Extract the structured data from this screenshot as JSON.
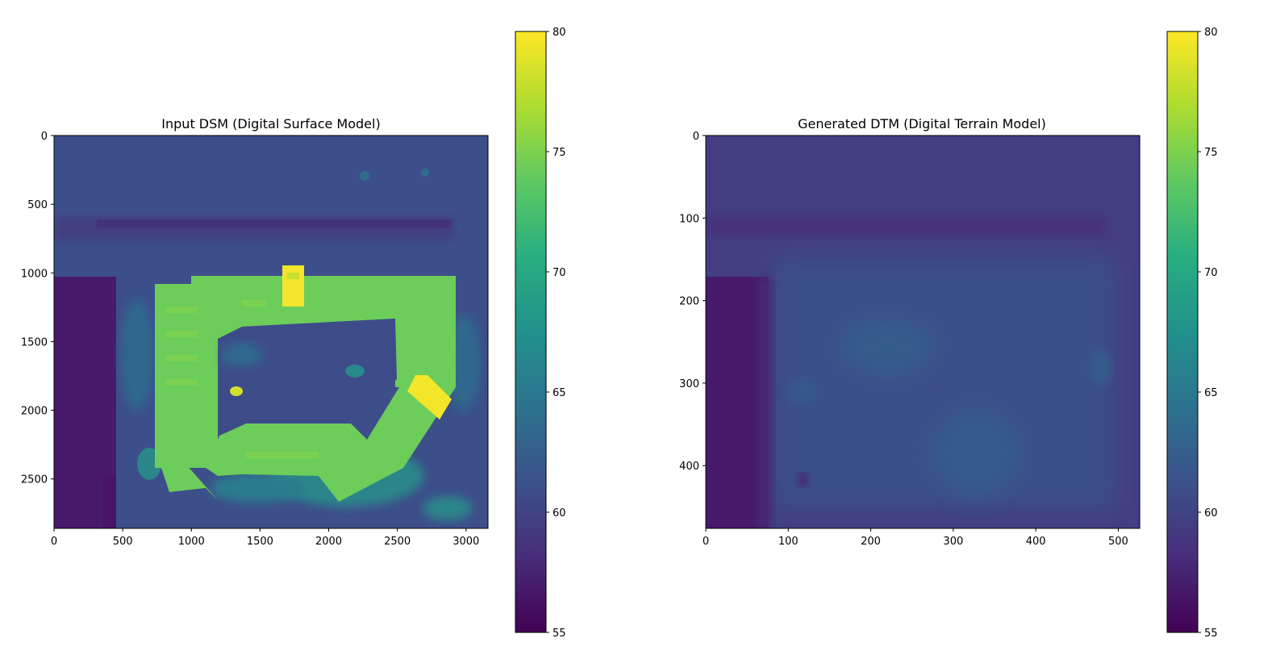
{
  "chart_data": [
    {
      "type": "heatmap",
      "title": "Input DSM (Digital Surface Model)",
      "xlim": [
        0,
        3160
      ],
      "ylim": [
        0,
        2860
      ],
      "y_inverted": true,
      "x_ticks": [
        0,
        500,
        1000,
        1500,
        2000,
        2500,
        3000
      ],
      "y_ticks": [
        0,
        500,
        1000,
        1500,
        2000,
        2500
      ],
      "colormap": "viridis",
      "colorbar": {
        "range": [
          55,
          80
        ],
        "ticks": [
          55,
          60,
          65,
          70,
          75,
          80
        ]
      },
      "background_value": 60,
      "features": [
        {
          "kind": "dark strip (west)",
          "x": [
            0,
            450
          ],
          "y": [
            1020,
            2860
          ],
          "value": 56
        },
        {
          "kind": "building wing north",
          "x": [
            700,
            2950
          ],
          "y": [
            1000,
            1400
          ],
          "value": 74
        },
        {
          "kind": "building wing west",
          "x": [
            740,
            1200
          ],
          "y": [
            1080,
            2450
          ],
          "value": 74
        },
        {
          "kind": "building wing south",
          "x": [
            1200,
            2200
          ],
          "y": [
            2250,
            2450
          ],
          "value": 74
        },
        {
          "kind": "building wing east",
          "x": [
            2500,
            2950
          ],
          "y": [
            1300,
            1900
          ],
          "value": 74
        },
        {
          "kind": "roof peak north",
          "x": [
            1660,
            1820
          ],
          "y": [
            950,
            1250
          ],
          "value": 79
        },
        {
          "kind": "roof peak east",
          "x": [
            2600,
            2880
          ],
          "y": [
            1750,
            2050
          ],
          "value": 79
        },
        {
          "kind": "vegetation",
          "x": [
            1400,
            2200
          ],
          "y": [
            2450,
            2700
          ],
          "value": 68
        }
      ]
    },
    {
      "type": "heatmap",
      "title": "Generated DTM (Digital Terrain Model)",
      "xlim": [
        0,
        526
      ],
      "ylim": [
        0,
        476
      ],
      "y_inverted": true,
      "x_ticks": [
        0,
        100,
        200,
        300,
        400,
        500
      ],
      "y_ticks": [
        0,
        100,
        200,
        300,
        400
      ],
      "colormap": "viridis",
      "colorbar": {
        "range": [
          55,
          80
        ],
        "ticks": [
          55,
          60,
          65,
          70,
          75,
          80
        ]
      },
      "background_value": 60,
      "features": [
        {
          "kind": "dark strip (west)",
          "x": [
            0,
            78
          ],
          "y": [
            170,
            476
          ],
          "value": 56
        },
        {
          "kind": "terrain rise",
          "x": [
            180,
            400
          ],
          "y": [
            190,
            420
          ],
          "value": 62
        },
        {
          "kind": "terrain rise",
          "x": [
            300,
            360
          ],
          "y": [
            340,
            420
          ],
          "value": 62.5
        }
      ]
    }
  ]
}
